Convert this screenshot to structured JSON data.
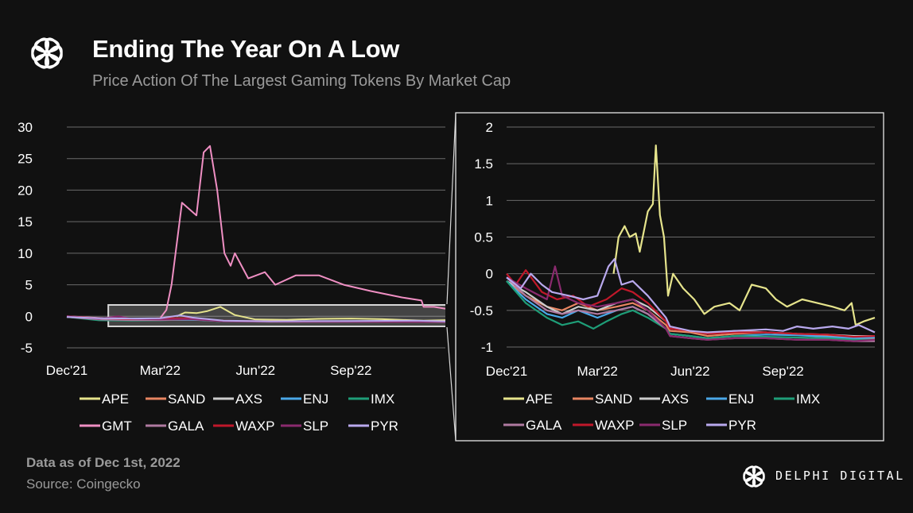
{
  "header": {
    "title": "Ending The Year On A Low",
    "subtitle": "Price Action Of The Largest Gaming Tokens By Market Cap"
  },
  "footer": {
    "data_note": "Data as of Dec 1st, 2022",
    "source": "Source: Coingecko",
    "brand": "DELPHI DIGITAL"
  },
  "colors": {
    "background": "#111111",
    "grid": "#6a6a6a",
    "highlight_box": "#d8d8d8"
  },
  "icons": {
    "logo": "delphi-flower-logo-icon"
  },
  "chart_data": [
    {
      "type": "line",
      "title": "",
      "xlabel": "",
      "ylabel": "",
      "x_ticks": [
        "Dec'21",
        "Mar'22",
        "Jun'22",
        "Sep'22"
      ],
      "x_range": [
        "2021-12-01",
        "2022-12-01"
      ],
      "ylim": [
        -5,
        30
      ],
      "y_ticks": [
        30,
        25,
        20,
        15,
        10,
        5,
        0,
        -5
      ],
      "grid": true,
      "legend": "bottom",
      "legend_entries": [
        "APE",
        "SAND",
        "AXS",
        "ENJ",
        "IMX",
        "GMT",
        "GALA",
        "WAXP",
        "SLP",
        "PYR"
      ],
      "highlight_range_y": [
        -1.6,
        1.8
      ],
      "series": [
        {
          "name": "APE",
          "color": "#e6e48c",
          "x": [
            "2022-03-17",
            "2022-03-25",
            "2022-04-05",
            "2022-04-15",
            "2022-04-28",
            "2022-05-12",
            "2022-06-01",
            "2022-07-01",
            "2022-08-01",
            "2022-09-01",
            "2022-10-01",
            "2022-11-10",
            "2022-12-01"
          ],
          "y": [
            0,
            0.6,
            0.5,
            0.8,
            1.5,
            0.2,
            -0.5,
            -0.55,
            -0.4,
            -0.35,
            -0.45,
            -0.7,
            -0.6
          ]
        },
        {
          "name": "SAND",
          "color": "#e88561",
          "x": [
            "2021-12-01",
            "2022-01-01",
            "2022-02-01",
            "2022-03-01",
            "2022-04-01",
            "2022-05-01",
            "2022-06-15",
            "2022-09-01",
            "2022-12-01"
          ],
          "y": [
            -0.1,
            -0.4,
            -0.45,
            -0.55,
            -0.45,
            -0.75,
            -0.82,
            -0.84,
            -0.88
          ]
        },
        {
          "name": "AXS",
          "color": "#cccccc",
          "x": [
            "2021-12-01",
            "2022-01-01",
            "2022-02-01",
            "2022-03-01",
            "2022-04-01",
            "2022-05-01",
            "2022-06-15",
            "2022-09-01",
            "2022-12-01"
          ],
          "y": [
            -0.1,
            -0.4,
            -0.45,
            -0.5,
            -0.45,
            -0.72,
            -0.8,
            -0.82,
            -0.84
          ]
        },
        {
          "name": "ENJ",
          "color": "#4aa8e8",
          "x": [
            "2021-12-01",
            "2022-01-01",
            "2022-02-01",
            "2022-03-01",
            "2022-04-01",
            "2022-05-01",
            "2022-06-15",
            "2022-09-01",
            "2022-12-01"
          ],
          "y": [
            -0.1,
            -0.5,
            -0.6,
            -0.6,
            -0.55,
            -0.78,
            -0.85,
            -0.84,
            -0.87
          ]
        },
        {
          "name": "IMX",
          "color": "#1e9e78",
          "x": [
            "2021-12-01",
            "2022-01-01",
            "2022-02-01",
            "2022-03-01",
            "2022-04-01",
            "2022-05-01",
            "2022-06-15",
            "2022-09-01",
            "2022-12-01"
          ],
          "y": [
            -0.1,
            -0.65,
            -0.7,
            -0.65,
            -0.5,
            -0.8,
            -0.85,
            -0.86,
            -0.9
          ]
        },
        {
          "name": "GMT",
          "color": "#ef8fc3",
          "x": [
            "2021-12-01",
            "2022-02-01",
            "2022-03-01",
            "2022-03-07",
            "2022-03-12",
            "2022-03-22",
            "2022-04-05",
            "2022-04-12",
            "2022-04-18",
            "2022-04-25",
            "2022-05-02",
            "2022-05-08",
            "2022-05-12",
            "2022-05-25",
            "2022-06-10",
            "2022-06-20",
            "2022-07-10",
            "2022-08-01",
            "2022-08-25",
            "2022-09-20",
            "2022-10-20",
            "2022-11-08",
            "2022-11-10",
            "2022-11-20",
            "2022-12-01"
          ],
          "y": [
            0,
            -0.5,
            -0.3,
            1,
            5,
            18,
            16,
            26,
            27,
            20,
            10,
            8,
            10,
            6,
            7,
            5,
            6.5,
            6.5,
            5,
            4,
            3,
            2.5,
            1.5,
            1.5,
            1.2
          ]
        },
        {
          "name": "GALA",
          "color": "#b07aa1",
          "x": [
            "2021-12-01",
            "2022-01-01",
            "2022-02-01",
            "2022-03-01",
            "2022-04-01",
            "2022-05-01",
            "2022-06-15",
            "2022-09-01",
            "2022-12-01"
          ],
          "y": [
            -0.1,
            -0.5,
            -0.6,
            -0.6,
            -0.5,
            -0.8,
            -0.88,
            -0.9,
            -0.92
          ]
        },
        {
          "name": "WAXP",
          "color": "#c0182a",
          "x": [
            "2021-12-01",
            "2022-01-01",
            "2022-02-01",
            "2022-03-01",
            "2022-04-01",
            "2022-05-01",
            "2022-06-15",
            "2022-09-01",
            "2022-12-01"
          ],
          "y": [
            0,
            -0.3,
            -0.45,
            -0.3,
            -0.3,
            -0.7,
            -0.8,
            -0.82,
            -0.85
          ]
        },
        {
          "name": "SLP",
          "color": "#8a2a6e",
          "x": [
            "2021-12-01",
            "2022-01-01",
            "2022-01-20",
            "2022-02-01",
            "2022-03-01",
            "2022-04-01",
            "2022-05-01",
            "2022-06-15",
            "2022-09-01",
            "2022-12-01"
          ],
          "y": [
            0,
            -0.4,
            0,
            -0.4,
            -0.5,
            -0.45,
            -0.8,
            -0.85,
            -0.88,
            -0.9
          ]
        },
        {
          "name": "PYR",
          "color": "#b9a9ee",
          "x": [
            "2021-12-01",
            "2022-01-01",
            "2022-02-01",
            "2022-03-01",
            "2022-03-20",
            "2022-04-01",
            "2022-05-01",
            "2022-06-15",
            "2022-09-01",
            "2022-11-01",
            "2022-12-01"
          ],
          "y": [
            -0.1,
            -0.3,
            -0.35,
            -0.3,
            0.15,
            -0.2,
            -0.7,
            -0.8,
            -0.75,
            -0.7,
            -0.8
          ]
        }
      ]
    },
    {
      "type": "line",
      "title": "",
      "xlabel": "",
      "ylabel": "",
      "x_ticks": [
        "Dec'21",
        "Mar'22",
        "Jun'22",
        "Sep'22"
      ],
      "x_range": [
        "2021-12-01",
        "2022-12-01"
      ],
      "ylim": [
        -1,
        2
      ],
      "y_ticks": [
        "2",
        "1.5",
        "1",
        "0.5",
        "0",
        "-0.5",
        "-1"
      ],
      "grid": true,
      "legend": "bottom",
      "legend_entries": [
        "APE",
        "SAND",
        "AXS",
        "ENJ",
        "IMX",
        "GALA",
        "WAXP",
        "SLP",
        "PYR"
      ],
      "series": [
        {
          "name": "APE",
          "color": "#e6e48c",
          "x": [
            "2022-03-17",
            "2022-03-22",
            "2022-03-28",
            "2022-04-02",
            "2022-04-08",
            "2022-04-12",
            "2022-04-20",
            "2022-04-25",
            "2022-04-28",
            "2022-05-02",
            "2022-05-06",
            "2022-05-10",
            "2022-05-15",
            "2022-05-25",
            "2022-06-05",
            "2022-06-15",
            "2022-06-25",
            "2022-07-10",
            "2022-07-20",
            "2022-08-01",
            "2022-08-15",
            "2022-08-25",
            "2022-09-05",
            "2022-09-20",
            "2022-10-05",
            "2022-10-20",
            "2022-11-01",
            "2022-11-08",
            "2022-11-12",
            "2022-11-20",
            "2022-12-01"
          ],
          "y": [
            0,
            0.5,
            0.65,
            0.5,
            0.55,
            0.3,
            0.85,
            0.95,
            1.75,
            0.8,
            0.5,
            -0.3,
            0,
            -0.2,
            -0.35,
            -0.55,
            -0.45,
            -0.4,
            -0.5,
            -0.15,
            -0.2,
            -0.35,
            -0.45,
            -0.35,
            -0.4,
            -0.45,
            -0.5,
            -0.4,
            -0.7,
            -0.65,
            -0.6
          ]
        },
        {
          "name": "SAND",
          "color": "#e88561",
          "x": [
            "2021-12-01",
            "2021-12-20",
            "2022-01-10",
            "2022-01-25",
            "2022-02-10",
            "2022-03-01",
            "2022-03-20",
            "2022-04-05",
            "2022-04-20",
            "2022-05-08",
            "2022-05-12",
            "2022-06-01",
            "2022-06-18",
            "2022-07-15",
            "2022-08-15",
            "2022-09-15",
            "2022-10-15",
            "2022-11-10",
            "2022-12-01"
          ],
          "y": [
            -0.1,
            -0.3,
            -0.45,
            -0.5,
            -0.4,
            -0.5,
            -0.45,
            -0.4,
            -0.5,
            -0.7,
            -0.78,
            -0.8,
            -0.85,
            -0.82,
            -0.8,
            -0.83,
            -0.85,
            -0.88,
            -0.88
          ]
        },
        {
          "name": "AXS",
          "color": "#cccccc",
          "x": [
            "2021-12-01",
            "2021-12-20",
            "2022-01-10",
            "2022-01-25",
            "2022-02-10",
            "2022-03-01",
            "2022-03-20",
            "2022-04-05",
            "2022-04-20",
            "2022-05-08",
            "2022-05-12",
            "2022-06-01",
            "2022-06-18",
            "2022-07-15",
            "2022-08-15",
            "2022-09-15",
            "2022-10-15",
            "2022-11-10",
            "2022-12-01"
          ],
          "y": [
            -0.1,
            -0.25,
            -0.45,
            -0.55,
            -0.45,
            -0.5,
            -0.4,
            -0.35,
            -0.45,
            -0.65,
            -0.75,
            -0.78,
            -0.82,
            -0.78,
            -0.8,
            -0.82,
            -0.83,
            -0.85,
            -0.85
          ]
        },
        {
          "name": "ENJ",
          "color": "#4aa8e8",
          "x": [
            "2021-12-01",
            "2021-12-20",
            "2022-01-10",
            "2022-01-25",
            "2022-02-10",
            "2022-03-01",
            "2022-03-20",
            "2022-04-05",
            "2022-04-20",
            "2022-05-08",
            "2022-05-12",
            "2022-06-01",
            "2022-06-18",
            "2022-07-15",
            "2022-08-15",
            "2022-09-15",
            "2022-10-15",
            "2022-11-10",
            "2022-12-01"
          ],
          "y": [
            -0.1,
            -0.35,
            -0.55,
            -0.6,
            -0.5,
            -0.6,
            -0.5,
            -0.45,
            -0.55,
            -0.75,
            -0.82,
            -0.85,
            -0.88,
            -0.85,
            -0.83,
            -0.84,
            -0.86,
            -0.88,
            -0.87
          ]
        },
        {
          "name": "IMX",
          "color": "#1e9e78",
          "x": [
            "2021-12-01",
            "2021-12-20",
            "2022-01-10",
            "2022-01-25",
            "2022-02-10",
            "2022-02-25",
            "2022-03-10",
            "2022-03-25",
            "2022-04-05",
            "2022-04-20",
            "2022-05-08",
            "2022-05-12",
            "2022-06-01",
            "2022-06-18",
            "2022-07-15",
            "2022-08-15",
            "2022-09-15",
            "2022-10-15",
            "2022-11-10",
            "2022-12-01"
          ],
          "y": [
            -0.1,
            -0.4,
            -0.6,
            -0.7,
            -0.65,
            -0.75,
            -0.65,
            -0.55,
            -0.5,
            -0.6,
            -0.75,
            -0.82,
            -0.85,
            -0.88,
            -0.85,
            -0.86,
            -0.87,
            -0.88,
            -0.9,
            -0.9
          ]
        },
        {
          "name": "GALA",
          "color": "#b07aa1",
          "x": [
            "2021-12-01",
            "2021-12-20",
            "2022-01-10",
            "2022-01-25",
            "2022-02-10",
            "2022-03-01",
            "2022-03-20",
            "2022-04-05",
            "2022-04-20",
            "2022-05-08",
            "2022-05-12",
            "2022-06-01",
            "2022-06-18",
            "2022-07-15",
            "2022-08-15",
            "2022-09-15",
            "2022-10-15",
            "2022-11-10",
            "2022-12-01"
          ],
          "y": [
            -0.05,
            -0.3,
            -0.5,
            -0.55,
            -0.5,
            -0.55,
            -0.5,
            -0.45,
            -0.55,
            -0.75,
            -0.85,
            -0.88,
            -0.9,
            -0.88,
            -0.88,
            -0.9,
            -0.9,
            -0.92,
            -0.92
          ]
        },
        {
          "name": "WAXP",
          "color": "#c0182a",
          "x": [
            "2021-12-01",
            "2021-12-10",
            "2021-12-20",
            "2022-01-05",
            "2022-01-20",
            "2022-02-05",
            "2022-02-20",
            "2022-03-10",
            "2022-03-25",
            "2022-04-05",
            "2022-04-20",
            "2022-05-08",
            "2022-05-12",
            "2022-06-01",
            "2022-06-18",
            "2022-07-15",
            "2022-08-15",
            "2022-09-15",
            "2022-10-15",
            "2022-11-10",
            "2022-12-01"
          ],
          "y": [
            0,
            -0.15,
            0.05,
            -0.25,
            -0.35,
            -0.3,
            -0.45,
            -0.35,
            -0.2,
            -0.25,
            -0.4,
            -0.65,
            -0.75,
            -0.78,
            -0.82,
            -0.8,
            -0.8,
            -0.82,
            -0.83,
            -0.86,
            -0.85
          ]
        },
        {
          "name": "SLP",
          "color": "#8a2a6e",
          "x": [
            "2021-12-01",
            "2021-12-20",
            "2022-01-10",
            "2022-01-18",
            "2022-01-25",
            "2022-02-10",
            "2022-03-01",
            "2022-03-20",
            "2022-04-05",
            "2022-04-20",
            "2022-05-08",
            "2022-05-12",
            "2022-06-01",
            "2022-06-18",
            "2022-07-15",
            "2022-08-15",
            "2022-09-15",
            "2022-10-15",
            "2022-11-10",
            "2022-12-01"
          ],
          "y": [
            -0.05,
            -0.2,
            -0.35,
            0.1,
            -0.3,
            -0.4,
            -0.45,
            -0.4,
            -0.35,
            -0.5,
            -0.75,
            -0.85,
            -0.88,
            -0.9,
            -0.88,
            -0.88,
            -0.9,
            -0.9,
            -0.92,
            -0.9
          ]
        },
        {
          "name": "PYR",
          "color": "#b9a9ee",
          "x": [
            "2021-12-01",
            "2021-12-15",
            "2021-12-25",
            "2022-01-05",
            "2022-01-15",
            "2022-02-01",
            "2022-02-15",
            "2022-03-01",
            "2022-03-12",
            "2022-03-18",
            "2022-03-25",
            "2022-04-05",
            "2022-04-20",
            "2022-05-08",
            "2022-05-12",
            "2022-06-01",
            "2022-06-18",
            "2022-07-15",
            "2022-08-15",
            "2022-09-01",
            "2022-09-15",
            "2022-10-01",
            "2022-10-20",
            "2022-11-05",
            "2022-11-15",
            "2022-12-01"
          ],
          "y": [
            -0.05,
            -0.2,
            0,
            -0.15,
            -0.25,
            -0.3,
            -0.35,
            -0.3,
            0.1,
            0.2,
            -0.15,
            -0.1,
            -0.3,
            -0.6,
            -0.72,
            -0.78,
            -0.8,
            -0.78,
            -0.76,
            -0.78,
            -0.72,
            -0.75,
            -0.72,
            -0.75,
            -0.7,
            -0.8
          ]
        }
      ]
    }
  ]
}
